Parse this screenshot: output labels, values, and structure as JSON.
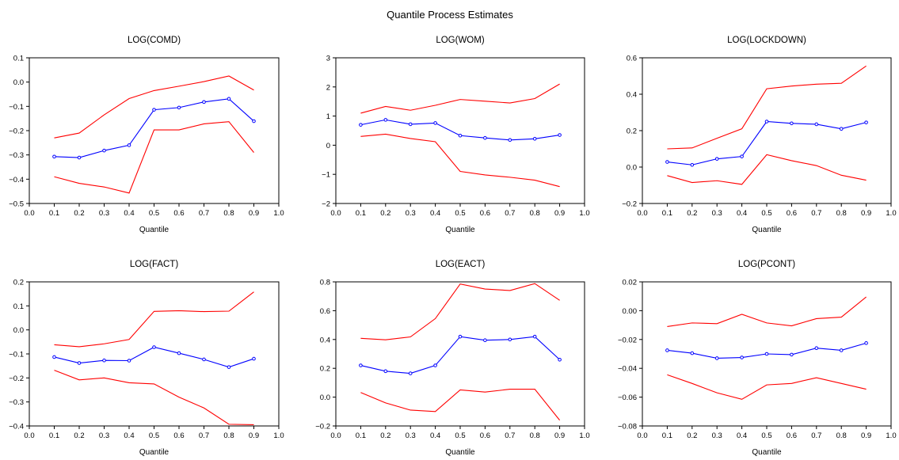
{
  "figure_title": "Quantile Process Estimates",
  "colors": {
    "estimate": "#0000ff",
    "bounds": "#ff0000",
    "axes": "#000000"
  },
  "chart_data": [
    {
      "type": "line",
      "title": "LOG(COMD)",
      "xlabel": "Quantile",
      "ylabel": "",
      "xlim": [
        0.0,
        1.0
      ],
      "ylim": [
        -0.5,
        0.1
      ],
      "xticks": [
        "0.0",
        "0.1",
        "0.2",
        "0.3",
        "0.4",
        "0.5",
        "0.6",
        "0.7",
        "0.8",
        "0.9",
        "1.0"
      ],
      "yticks": [
        "0.1",
        "0.0",
        "−0.1",
        "−0.2",
        "−0.3",
        "−0.4",
        "−0.5"
      ],
      "yticks_values": [
        0.1,
        0.0,
        -0.1,
        -0.2,
        -0.3,
        -0.4,
        -0.5
      ],
      "x": [
        0.1,
        0.2,
        0.3,
        0.4,
        0.5,
        0.6,
        0.7,
        0.8,
        0.9
      ],
      "series": [
        {
          "role": "upper",
          "values": [
            -0.23,
            -0.21,
            -0.135,
            -0.068,
            -0.035,
            -0.017,
            0.002,
            0.025,
            -0.033
          ]
        },
        {
          "role": "estimate",
          "values": [
            -0.307,
            -0.311,
            -0.282,
            -0.26,
            -0.114,
            -0.105,
            -0.082,
            -0.069,
            -0.161
          ]
        },
        {
          "role": "lower",
          "values": [
            -0.39,
            -0.417,
            -0.432,
            -0.457,
            -0.197,
            -0.197,
            -0.172,
            -0.163,
            -0.29
          ]
        }
      ]
    },
    {
      "type": "line",
      "title": "LOG(WOM)",
      "xlabel": "Quantile",
      "ylabel": "",
      "xlim": [
        0.0,
        1.0
      ],
      "ylim": [
        -2,
        3
      ],
      "xticks": [
        "0.0",
        "0.1",
        "0.2",
        "0.3",
        "0.4",
        "0.5",
        "0.6",
        "0.7",
        "0.8",
        "0.9",
        "1.0"
      ],
      "yticks": [
        "3",
        "2",
        "1",
        "0",
        "−1",
        "−2"
      ],
      "yticks_values": [
        3,
        2,
        1,
        0,
        -1,
        -2
      ],
      "x": [
        0.1,
        0.2,
        0.3,
        0.4,
        0.5,
        0.6,
        0.7,
        0.8,
        0.9
      ],
      "series": [
        {
          "role": "upper",
          "values": [
            1.1,
            1.33,
            1.2,
            1.37,
            1.57,
            1.51,
            1.45,
            1.6,
            2.1
          ]
        },
        {
          "role": "estimate",
          "values": [
            0.7,
            0.87,
            0.72,
            0.76,
            0.33,
            0.25,
            0.18,
            0.22,
            0.35
          ]
        },
        {
          "role": "lower",
          "values": [
            0.3,
            0.38,
            0.23,
            0.12,
            -0.9,
            -1.02,
            -1.1,
            -1.2,
            -1.42
          ]
        }
      ]
    },
    {
      "type": "line",
      "title": "LOG(LOCKDOWN)",
      "xlabel": "Quantile",
      "ylabel": "",
      "xlim": [
        0.0,
        1.0
      ],
      "ylim": [
        -0.2,
        0.6
      ],
      "xticks": [
        "0.0",
        "0.1",
        "0.2",
        "0.3",
        "0.4",
        "0.5",
        "0.6",
        "0.7",
        "0.8",
        "0.9",
        "1.0"
      ],
      "yticks": [
        "0.6",
        "0.4",
        "0.2",
        "0.0",
        "−0.2"
      ],
      "yticks_values": [
        0.6,
        0.4,
        0.2,
        0.0,
        -0.2
      ],
      "x": [
        0.1,
        0.2,
        0.3,
        0.4,
        0.5,
        0.6,
        0.7,
        0.8,
        0.9
      ],
      "series": [
        {
          "role": "upper",
          "values": [
            0.1,
            0.105,
            0.158,
            0.21,
            0.43,
            0.445,
            0.455,
            0.46,
            0.555
          ]
        },
        {
          "role": "estimate",
          "values": [
            0.028,
            0.012,
            0.045,
            0.058,
            0.25,
            0.24,
            0.235,
            0.21,
            0.245
          ]
        },
        {
          "role": "lower",
          "values": [
            -0.047,
            -0.085,
            -0.075,
            -0.095,
            0.068,
            0.035,
            0.008,
            -0.045,
            -0.072
          ]
        }
      ]
    },
    {
      "type": "line",
      "title": "LOG(FACT)",
      "xlabel": "Quantile",
      "ylabel": "",
      "xlim": [
        0.0,
        1.0
      ],
      "ylim": [
        -0.4,
        0.2
      ],
      "xticks": [
        "0.0",
        "0.1",
        "0.2",
        "0.3",
        "0.4",
        "0.5",
        "0.6",
        "0.7",
        "0.8",
        "0.9",
        "1.0"
      ],
      "yticks": [
        "0.2",
        "0.1",
        "0.0",
        "−0.1",
        "−0.2",
        "−0.3",
        "−0.4"
      ],
      "yticks_values": [
        0.2,
        0.1,
        0.0,
        -0.1,
        -0.2,
        -0.3,
        -0.4
      ],
      "x": [
        0.1,
        0.2,
        0.3,
        0.4,
        0.5,
        0.6,
        0.7,
        0.8,
        0.9
      ],
      "series": [
        {
          "role": "upper",
          "values": [
            -0.062,
            -0.07,
            -0.058,
            -0.04,
            0.077,
            0.08,
            0.076,
            0.078,
            0.158
          ]
        },
        {
          "role": "estimate",
          "values": [
            -0.113,
            -0.138,
            -0.127,
            -0.128,
            -0.072,
            -0.097,
            -0.123,
            -0.155,
            -0.12
          ]
        },
        {
          "role": "lower",
          "values": [
            -0.168,
            -0.208,
            -0.2,
            -0.22,
            -0.225,
            -0.28,
            -0.325,
            -0.393,
            -0.395
          ]
        }
      ]
    },
    {
      "type": "line",
      "title": "LOG(EACT)",
      "xlabel": "Quantile",
      "ylabel": "",
      "xlim": [
        0.0,
        1.0
      ],
      "ylim": [
        -0.2,
        0.8
      ],
      "xticks": [
        "0.0",
        "0.1",
        "0.2",
        "0.3",
        "0.4",
        "0.5",
        "0.6",
        "0.7",
        "0.8",
        "0.9",
        "1.0"
      ],
      "yticks": [
        "0.8",
        "0.6",
        "0.4",
        "0.2",
        "0.0",
        "−0.2"
      ],
      "yticks_values": [
        0.8,
        0.6,
        0.4,
        0.2,
        0.0,
        -0.2
      ],
      "x": [
        0.1,
        0.2,
        0.3,
        0.4,
        0.5,
        0.6,
        0.7,
        0.8,
        0.9
      ],
      "series": [
        {
          "role": "upper",
          "values": [
            0.408,
            0.398,
            0.418,
            0.545,
            0.785,
            0.75,
            0.74,
            0.788,
            0.672
          ]
        },
        {
          "role": "estimate",
          "values": [
            0.22,
            0.18,
            0.165,
            0.22,
            0.42,
            0.395,
            0.4,
            0.42,
            0.26
          ]
        },
        {
          "role": "lower",
          "values": [
            0.032,
            -0.04,
            -0.09,
            -0.1,
            0.05,
            0.035,
            0.055,
            0.055,
            -0.16
          ]
        }
      ]
    },
    {
      "type": "line",
      "title": "LOG(PCONT)",
      "xlabel": "Quantile",
      "ylabel": "",
      "xlim": [
        0.0,
        1.0
      ],
      "ylim": [
        -0.08,
        0.02
      ],
      "xticks": [
        "0.0",
        "0.1",
        "0.2",
        "0.3",
        "0.4",
        "0.5",
        "0.6",
        "0.7",
        "0.8",
        "0.9",
        "1.0"
      ],
      "yticks": [
        "0.02",
        "0.00",
        "−0.02",
        "−0.04",
        "−0.06",
        "−0.08"
      ],
      "yticks_values": [
        0.02,
        0.0,
        -0.02,
        -0.04,
        -0.06,
        -0.08
      ],
      "x": [
        0.1,
        0.2,
        0.3,
        0.4,
        0.5,
        0.6,
        0.7,
        0.8,
        0.9
      ],
      "series": [
        {
          "role": "upper",
          "values": [
            -0.011,
            -0.0085,
            -0.009,
            -0.0025,
            -0.0085,
            -0.0105,
            -0.0055,
            -0.0045,
            0.0095
          ]
        },
        {
          "role": "estimate",
          "values": [
            -0.0275,
            -0.0295,
            -0.033,
            -0.0325,
            -0.03,
            -0.0305,
            -0.026,
            -0.0275,
            -0.0225
          ]
        },
        {
          "role": "lower",
          "values": [
            -0.0445,
            -0.0505,
            -0.057,
            -0.0615,
            -0.0515,
            -0.0505,
            -0.0465,
            -0.0505,
            -0.0545
          ]
        }
      ]
    }
  ]
}
